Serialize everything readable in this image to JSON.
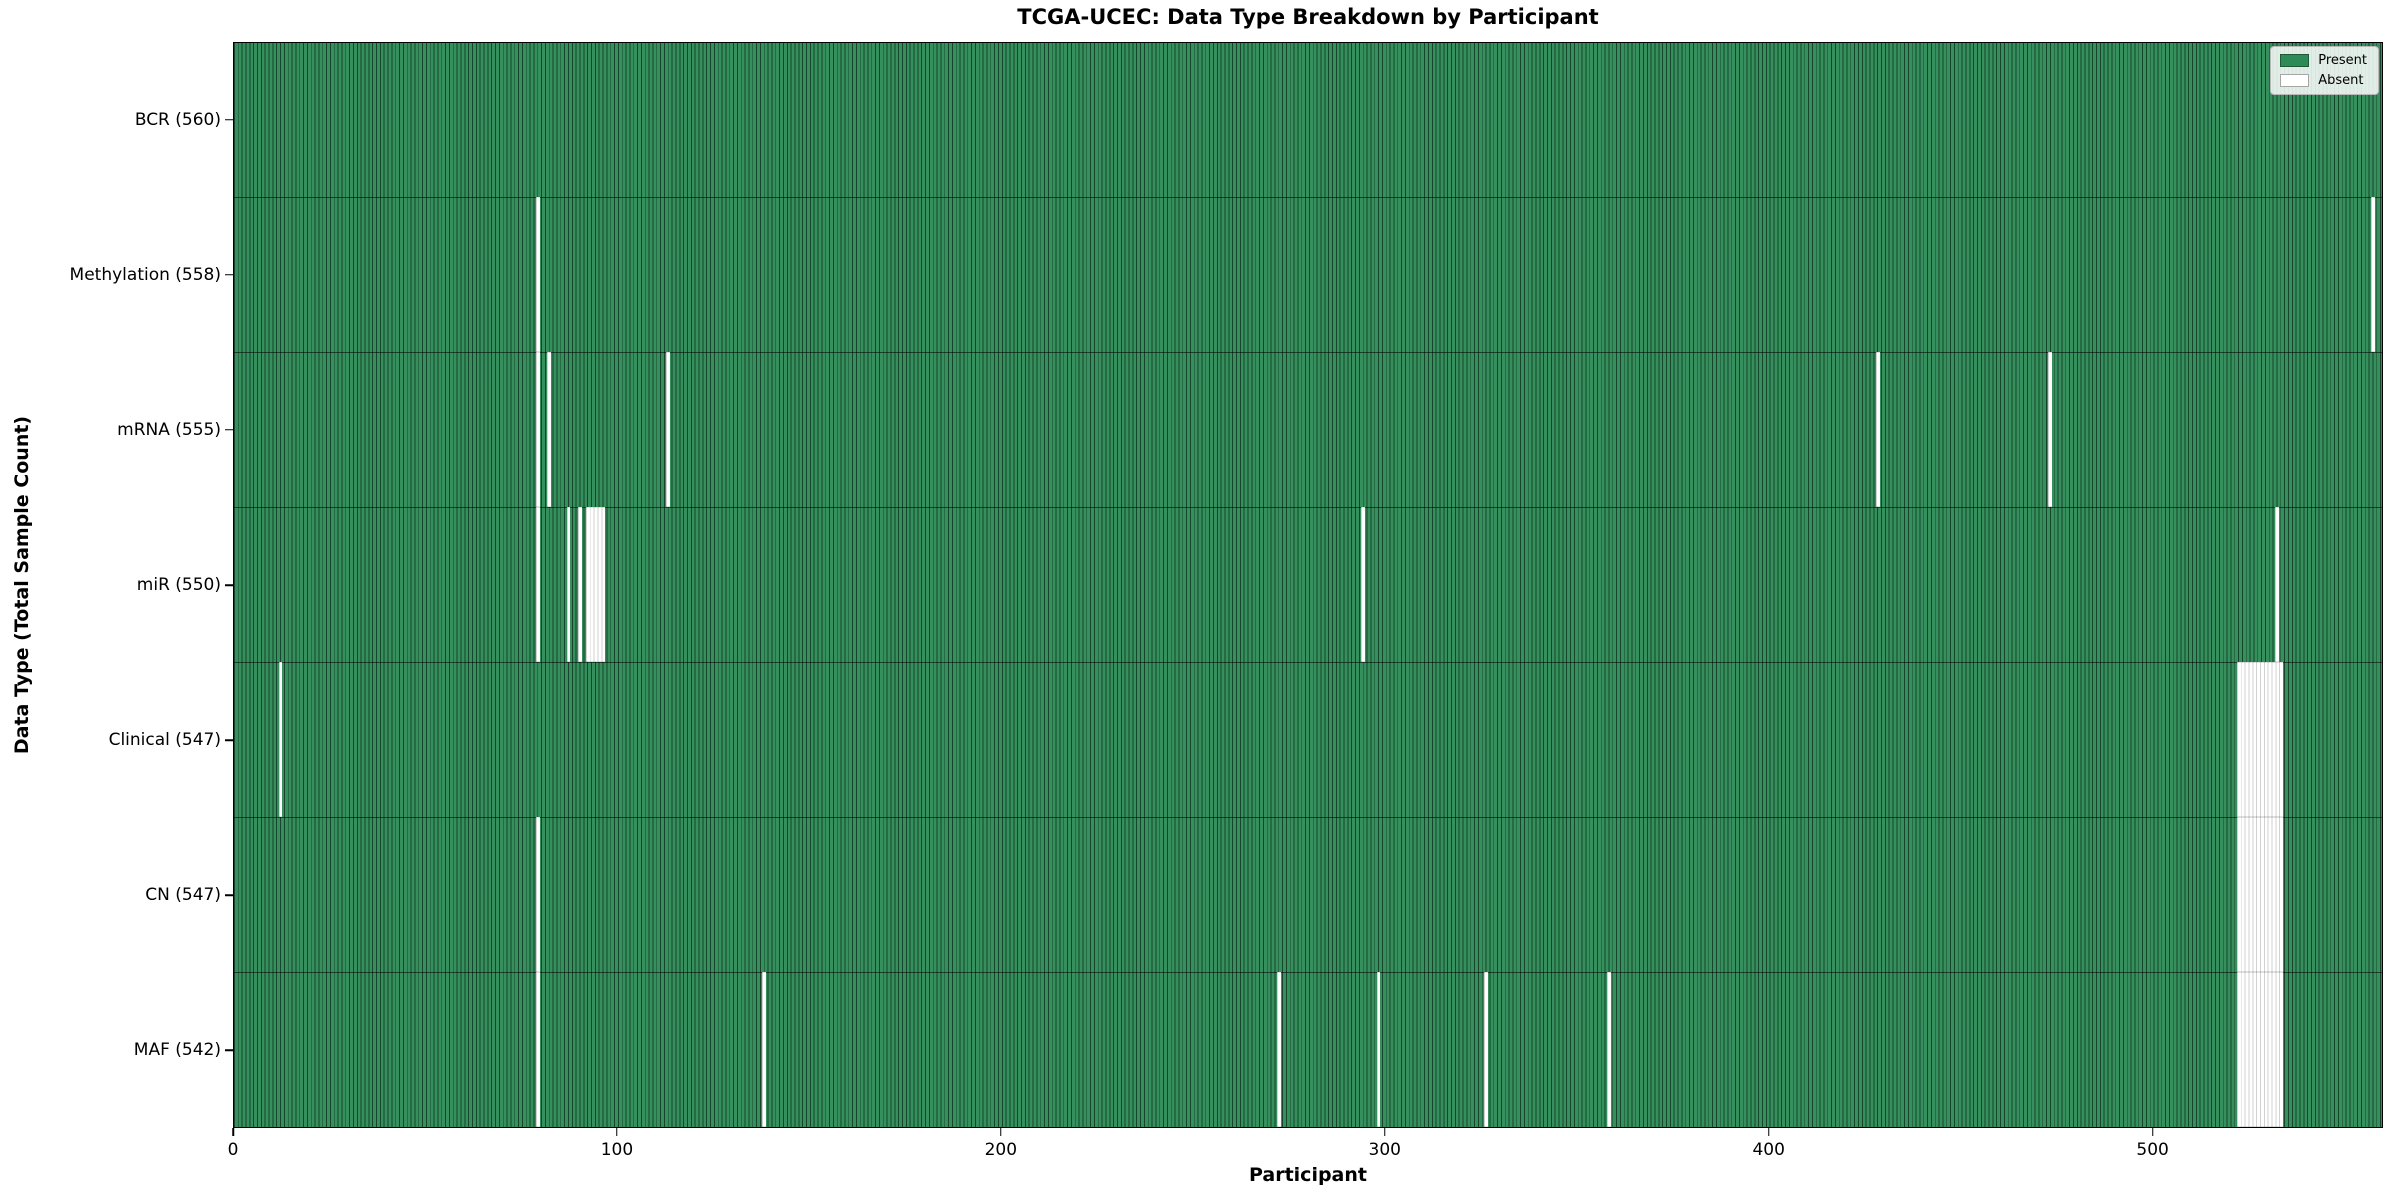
{
  "chart_data": {
    "type": "heatmap",
    "title": "TCGA-UCEC: Data Type Breakdown by Participant",
    "xlabel": "Participant",
    "ylabel": "Data Type (Total Sample Count)",
    "x_ticks": [
      0,
      100,
      200,
      300,
      400,
      500
    ],
    "x_range": [
      0,
      560
    ],
    "n_participants": 560,
    "grid": false,
    "legend_position": "upper-right",
    "colors": {
      "present": "#2e8b57",
      "absent": "#ffffff",
      "cell_edge": "#1b4d33"
    },
    "legend": [
      {
        "label": "Present",
        "color": "#2e8b57"
      },
      {
        "label": "Absent",
        "color": "#ffffff"
      }
    ],
    "rows": [
      {
        "label": "BCR (560)",
        "data_type": "BCR",
        "present_count": 560,
        "absent_count": 0,
        "absent_runs": []
      },
      {
        "label": "Methylation (558)",
        "data_type": "Methylation",
        "present_count": 558,
        "absent_count": 2,
        "absent_runs": [
          [
            79,
            1
          ],
          [
            557,
            1
          ]
        ]
      },
      {
        "label": "mRNA (555)",
        "data_type": "mRNA",
        "present_count": 555,
        "absent_count": 5,
        "absent_runs": [
          [
            79,
            1
          ],
          [
            82,
            1
          ],
          [
            113,
            1
          ],
          [
            428,
            1
          ],
          [
            473,
            1
          ]
        ]
      },
      {
        "label": "miR (550)",
        "data_type": "miR",
        "present_count": 550,
        "absent_count": 10,
        "absent_runs": [
          [
            79,
            1
          ],
          [
            87,
            1
          ],
          [
            90,
            1
          ],
          [
            92,
            5
          ],
          [
            294,
            1
          ],
          [
            532,
            1
          ]
        ]
      },
      {
        "label": "Clinical (547)",
        "data_type": "Clinical",
        "present_count": 547,
        "absent_count": 13,
        "absent_runs": [
          [
            12,
            1
          ],
          [
            522,
            12
          ]
        ]
      },
      {
        "label": "CN (547)",
        "data_type": "CN",
        "present_count": 547,
        "absent_count": 13,
        "absent_runs": [
          [
            79,
            1
          ],
          [
            522,
            12
          ]
        ]
      },
      {
        "label": "MAF (542)",
        "data_type": "MAF",
        "present_count": 542,
        "absent_count": 18,
        "absent_runs": [
          [
            79,
            1
          ],
          [
            138,
            1
          ],
          [
            272,
            1
          ],
          [
            298,
            1
          ],
          [
            326,
            1
          ],
          [
            358,
            1
          ],
          [
            522,
            12
          ]
        ]
      }
    ]
  }
}
